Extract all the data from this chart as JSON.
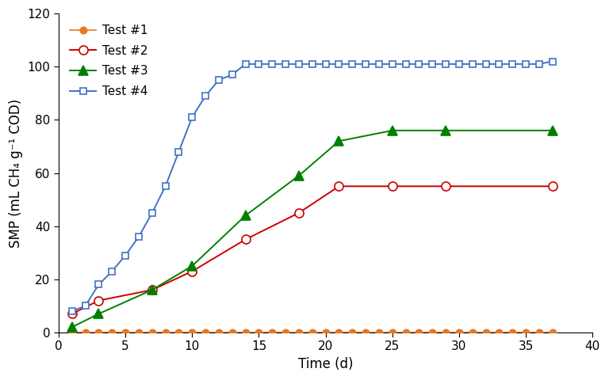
{
  "title": "",
  "xlabel": "Time (d)",
  "ylabel": "SMP (mL CH₄ g⁻¹ COD)",
  "xlim": [
    0,
    40
  ],
  "ylim": [
    0,
    120
  ],
  "xticks": [
    0,
    5,
    10,
    15,
    20,
    25,
    30,
    35,
    40
  ],
  "yticks": [
    0,
    20,
    40,
    60,
    80,
    100,
    120
  ],
  "test1": {
    "label": "Test #1",
    "color": "#E87722",
    "marker": "o",
    "markerfacecolor": "#E87722",
    "markeredgecolor": "#E87722",
    "markersize": 6,
    "linewidth": 1.2,
    "x": [
      1,
      2,
      3,
      4,
      5,
      6,
      7,
      8,
      9,
      10,
      11,
      12,
      13,
      14,
      15,
      16,
      17,
      18,
      19,
      20,
      21,
      22,
      23,
      24,
      25,
      26,
      27,
      28,
      29,
      30,
      31,
      32,
      33,
      34,
      35,
      36,
      37
    ],
    "y": [
      0,
      0,
      0,
      0,
      0,
      0,
      0,
      0,
      0,
      0,
      0,
      0,
      0,
      0,
      0,
      0,
      0,
      0,
      0,
      0,
      0,
      0,
      0,
      0,
      0,
      0,
      0,
      0,
      0,
      0,
      0,
      0,
      0,
      0,
      0,
      0,
      0
    ]
  },
  "test2": {
    "label": "Test #2",
    "color": "#CC0000",
    "marker": "o",
    "markerfacecolor": "white",
    "markeredgecolor": "#CC0000",
    "markersize": 8,
    "linewidth": 1.4,
    "x": [
      1,
      3,
      7,
      10,
      14,
      18,
      21,
      25,
      29,
      37
    ],
    "y": [
      7,
      12,
      16,
      23,
      35,
      45,
      55,
      55,
      55,
      55
    ]
  },
  "test3": {
    "label": "Test #3",
    "color": "#008000",
    "marker": "^",
    "markerfacecolor": "#008000",
    "markeredgecolor": "#008000",
    "markersize": 8,
    "linewidth": 1.4,
    "x": [
      1,
      3,
      7,
      10,
      14,
      18,
      21,
      25,
      29,
      37
    ],
    "y": [
      2,
      7,
      16,
      25,
      44,
      59,
      72,
      76,
      76,
      76
    ]
  },
  "test4": {
    "label": "Test #4",
    "color": "#4472C4",
    "marker": "s",
    "markerfacecolor": "white",
    "markeredgecolor": "#4472C4",
    "markersize": 6,
    "linewidth": 1.4,
    "x": [
      1,
      2,
      3,
      4,
      5,
      6,
      7,
      8,
      9,
      10,
      11,
      12,
      13,
      14,
      15,
      16,
      17,
      18,
      19,
      20,
      21,
      22,
      23,
      24,
      25,
      26,
      27,
      28,
      29,
      30,
      31,
      32,
      33,
      34,
      35,
      36,
      37
    ],
    "y": [
      8,
      10,
      18,
      23,
      29,
      36,
      45,
      55,
      68,
      81,
      89,
      95,
      97,
      101,
      101,
      101,
      101,
      101,
      101,
      101,
      101,
      101,
      101,
      101,
      101,
      101,
      101,
      101,
      101,
      101,
      101,
      101,
      101,
      101,
      101,
      101,
      102
    ]
  },
  "fontsize_ticks": 11,
  "fontsize_label": 12,
  "fontsize_legend": 11,
  "legend_loc": "upper left"
}
